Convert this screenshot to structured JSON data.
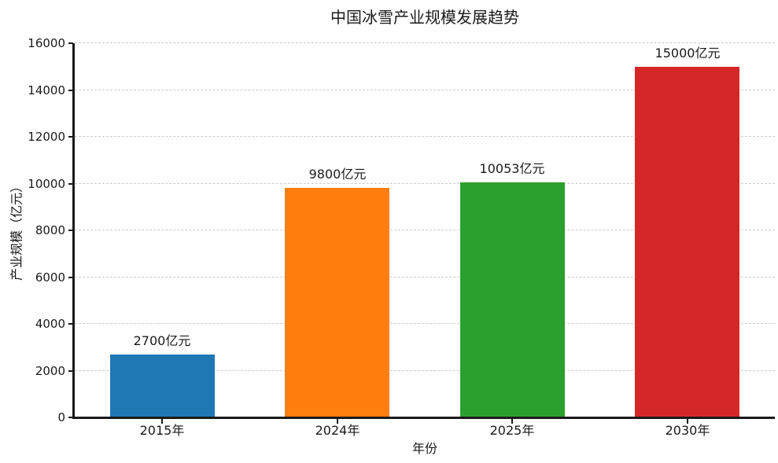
{
  "title": "中国冰雪产业规模发展趋势",
  "colors": {
    "background": "#ffffff",
    "text": "#1a1a1a",
    "grid": "#cdcdcd",
    "axis": "#1a1a1a"
  },
  "chart_data": {
    "type": "bar",
    "title": "中国冰雪产业规模发展趋势",
    "categories": [
      "2015年",
      "2024年",
      "2025年",
      "2030年"
    ],
    "values": [
      2700,
      9800,
      10053,
      15000
    ],
    "bar_labels": [
      "2700亿元",
      "9800亿元",
      "10053亿元",
      "15000亿元"
    ],
    "bar_colors": [
      "#1f77b4",
      "#ff7f0e",
      "#2ca02c",
      "#d62728"
    ],
    "xlabel": "年份",
    "ylabel": "产业规模（亿元）",
    "ylim": [
      0,
      16000
    ],
    "yticks": [
      0,
      2000,
      4000,
      6000,
      8000,
      10000,
      12000,
      14000,
      16000
    ],
    "grid": "horizontal-dashed",
    "legend": "none"
  }
}
